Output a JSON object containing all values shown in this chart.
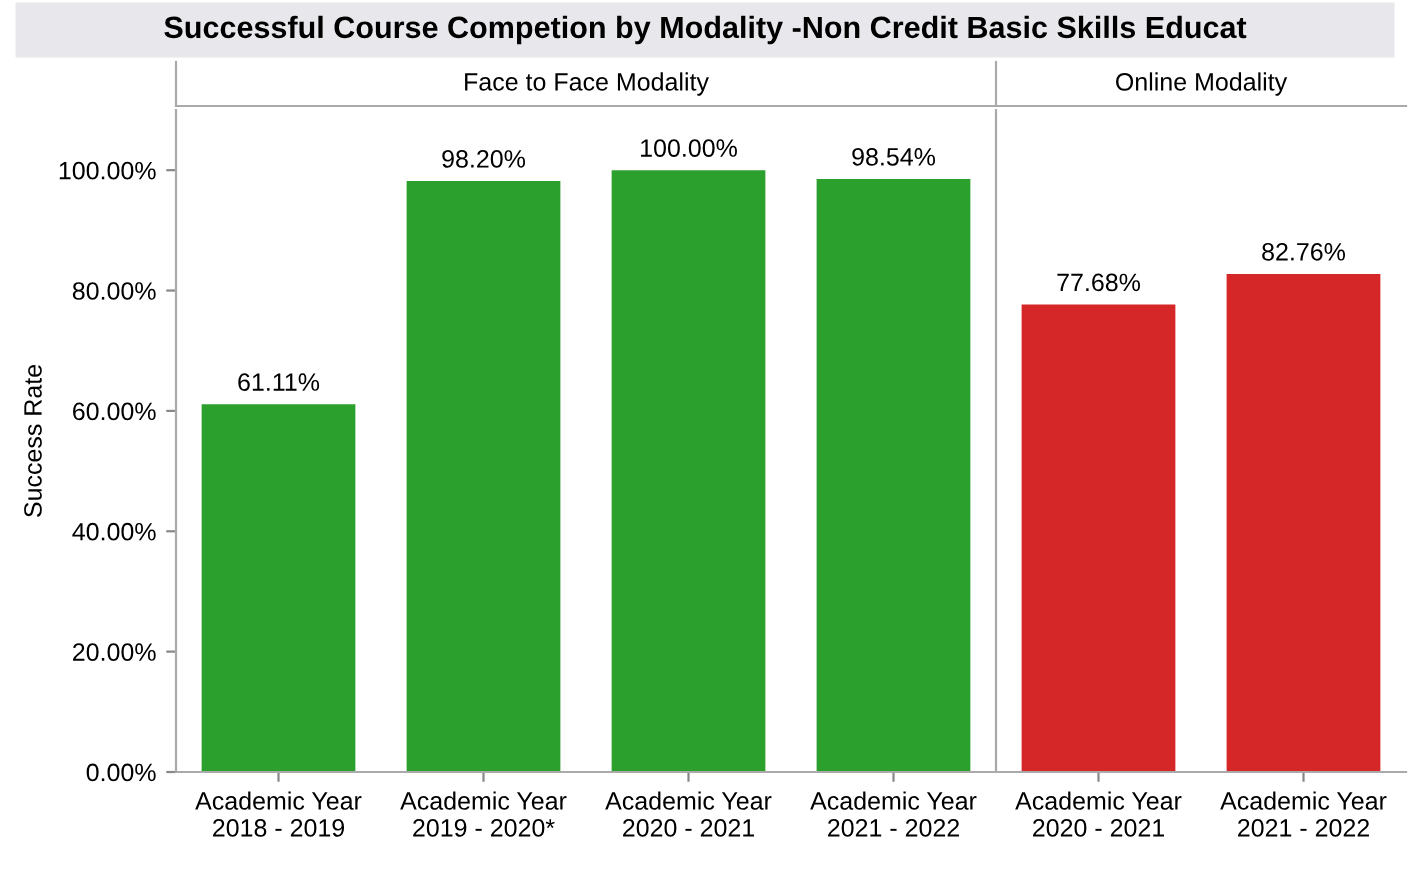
{
  "chart_data": [
    {
      "type": "bar",
      "title": "Successful Course Competion by Modality -Non Credit Basic Skills Educat",
      "subtitle": "Face to Face Modality",
      "ylabel": "Success Rate",
      "categories": [
        "Academic Year\n2018 - 2019",
        "Academic Year\n2019 - 2020*",
        "Academic Year\n2020 - 2021",
        "Academic Year\n2021 - 2022"
      ],
      "values": [
        61.11,
        98.2,
        100.0,
        98.54
      ],
      "color": "#2ca02c",
      "value_labels": [
        "61.11%",
        "98.20%",
        "100.00%",
        "98.54%"
      ],
      "ylim": [
        0,
        110
      ],
      "yticks": [
        {
          "value": 0,
          "label": "0.00%"
        },
        {
          "value": 20,
          "label": "20.00%"
        },
        {
          "value": 40,
          "label": "40.00%"
        },
        {
          "value": 60,
          "label": "60.00%"
        },
        {
          "value": 80,
          "label": "80.00%"
        },
        {
          "value": 100,
          "label": "100.00%"
        }
      ]
    },
    {
      "type": "bar",
      "subtitle": "Online Modality",
      "categories": [
        "Academic Year\n2020 - 2021",
        "Academic Year\n2021 - 2022"
      ],
      "values": [
        77.68,
        82.76
      ],
      "color": "#d62728",
      "value_labels": [
        "77.68%",
        "82.76%"
      ],
      "ylim": [
        0,
        110
      ],
      "tick_labels": "x"
    }
  ]
}
